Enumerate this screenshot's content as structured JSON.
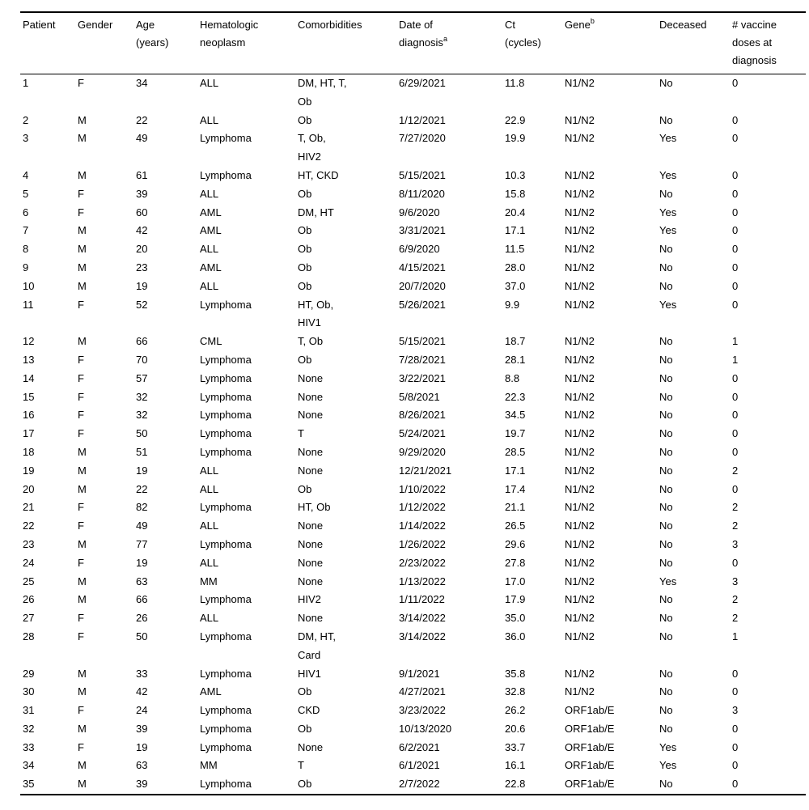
{
  "table": {
    "columns": [
      {
        "id": "patient",
        "label_lines": [
          "Patient"
        ],
        "sup": ""
      },
      {
        "id": "gender",
        "label_lines": [
          "Gender"
        ],
        "sup": ""
      },
      {
        "id": "age",
        "label_lines": [
          "Age",
          "(years)"
        ],
        "sup": ""
      },
      {
        "id": "hematologic-neoplasm",
        "label_lines": [
          "Hematologic",
          "neoplasm"
        ],
        "sup": ""
      },
      {
        "id": "comorbidities",
        "label_lines": [
          "Comorbidities"
        ],
        "sup": ""
      },
      {
        "id": "date-of-diagnosis",
        "label_lines": [
          "Date of",
          "diagnosis"
        ],
        "sup": "a"
      },
      {
        "id": "ct-cycles",
        "label_lines": [
          "Ct",
          "(cycles)"
        ],
        "sup": ""
      },
      {
        "id": "gene",
        "label_lines": [
          "Gene"
        ],
        "sup": "b"
      },
      {
        "id": "deceased",
        "label_lines": [
          "Deceased"
        ],
        "sup": ""
      },
      {
        "id": "vaccine-doses",
        "label_lines": [
          "# vaccine",
          "doses at",
          "diagnosis"
        ],
        "sup": ""
      }
    ],
    "rows": [
      [
        "1",
        "F",
        "34",
        "ALL",
        "DM, HT, T, Ob",
        "6/29/2021",
        "11.8",
        "N1/N2",
        "No",
        "0"
      ],
      [
        "2",
        "M",
        "22",
        "ALL",
        "Ob",
        "1/12/2021",
        "22.9",
        "N1/N2",
        "No",
        "0"
      ],
      [
        "3",
        "M",
        "49",
        "Lymphoma",
        "T, Ob, HIV2",
        "7/27/2020",
        "19.9",
        "N1/N2",
        "Yes",
        "0"
      ],
      [
        "4",
        "M",
        "61",
        "Lymphoma",
        "HT, CKD",
        "5/15/2021",
        "10.3",
        "N1/N2",
        "Yes",
        "0"
      ],
      [
        "5",
        "F",
        "39",
        "ALL",
        "Ob",
        "8/11/2020",
        "15.8",
        "N1/N2",
        "No",
        "0"
      ],
      [
        "6",
        "F",
        "60",
        "AML",
        "DM, HT",
        "9/6/2020",
        "20.4",
        "N1/N2",
        "Yes",
        "0"
      ],
      [
        "7",
        "M",
        "42",
        "AML",
        "Ob",
        "3/31/2021",
        "17.1",
        "N1/N2",
        "Yes",
        "0"
      ],
      [
        "8",
        "M",
        "20",
        "ALL",
        "Ob",
        "6/9/2020",
        "11.5",
        "N1/N2",
        "No",
        "0"
      ],
      [
        "9",
        "M",
        "23",
        "AML",
        "Ob",
        "4/15/2021",
        "28.0",
        "N1/N2",
        "No",
        "0"
      ],
      [
        "10",
        "M",
        "19",
        "ALL",
        "Ob",
        "20/7/2020",
        "37.0",
        "N1/N2",
        "No",
        "0"
      ],
      [
        "11",
        "F",
        "52",
        "Lymphoma",
        "HT, Ob, HIV1",
        "5/26/2021",
        "9.9",
        "N1/N2",
        "Yes",
        "0"
      ],
      [
        "12",
        "M",
        "66",
        "CML",
        "T, Ob",
        "5/15/2021",
        "18.7",
        "N1/N2",
        "No",
        "1"
      ],
      [
        "13",
        "F",
        "70",
        "Lymphoma",
        "Ob",
        "7/28/2021",
        "28.1",
        "N1/N2",
        "No",
        "1"
      ],
      [
        "14",
        "F",
        "57",
        "Lymphoma",
        "None",
        "3/22/2021",
        "8.8",
        "N1/N2",
        "No",
        "0"
      ],
      [
        "15",
        "F",
        "32",
        "Lymphoma",
        "None",
        "5/8/2021",
        "22.3",
        "N1/N2",
        "No",
        "0"
      ],
      [
        "16",
        "F",
        "32",
        "Lymphoma",
        "None",
        "8/26/2021",
        "34.5",
        "N1/N2",
        "No",
        "0"
      ],
      [
        "17",
        "F",
        "50",
        "Lymphoma",
        "T",
        "5/24/2021",
        "19.7",
        "N1/N2",
        "No",
        "0"
      ],
      [
        "18",
        "M",
        "51",
        "Lymphoma",
        "None",
        "9/29/2020",
        "28.5",
        "N1/N2",
        "No",
        "0"
      ],
      [
        "19",
        "M",
        "19",
        "ALL",
        "None",
        "12/21/2021",
        "17.1",
        "N1/N2",
        "No",
        "2"
      ],
      [
        "20",
        "M",
        "22",
        "ALL",
        "Ob",
        "1/10/2022",
        "17.4",
        "N1/N2",
        "No",
        "0"
      ],
      [
        "21",
        "F",
        "82",
        "Lymphoma",
        "HT, Ob",
        "1/12/2022",
        "21.1",
        "N1/N2",
        "No",
        "2"
      ],
      [
        "22",
        "F",
        "49",
        "ALL",
        "None",
        "1/14/2022",
        "26.5",
        "N1/N2",
        "No",
        "2"
      ],
      [
        "23",
        "M",
        "77",
        "Lymphoma",
        "None",
        "1/26/2022",
        "29.6",
        "N1/N2",
        "No",
        "3"
      ],
      [
        "24",
        "F",
        "19",
        "ALL",
        "None",
        "2/23/2022",
        "27.8",
        "N1/N2",
        "No",
        "0"
      ],
      [
        "25",
        "M",
        "63",
        "MM",
        "None",
        "1/13/2022",
        "17.0",
        "N1/N2",
        "Yes",
        "3"
      ],
      [
        "26",
        "M",
        "66",
        "Lymphoma",
        "HIV2",
        "1/11/2022",
        "17.9",
        "N1/N2",
        "No",
        "2"
      ],
      [
        "27",
        "F",
        "26",
        "ALL",
        "None",
        "3/14/2022",
        "35.0",
        "N1/N2",
        "No",
        "2"
      ],
      [
        "28",
        "F",
        "50",
        "Lymphoma",
        "DM, HT, Card",
        "3/14/2022",
        "36.0",
        "N1/N2",
        "No",
        "1"
      ],
      [
        "29",
        "M",
        "33",
        "Lymphoma",
        "HIV1",
        "9/1/2021",
        "35.8",
        "N1/N2",
        "No",
        "0"
      ],
      [
        "30",
        "M",
        "42",
        "AML",
        "Ob",
        "4/27/2021",
        "32.8",
        "N1/N2",
        "No",
        "0"
      ],
      [
        "31",
        "F",
        "24",
        "Lymphoma",
        "CKD",
        "3/23/2022",
        "26.2",
        "ORF1ab/E",
        "No",
        "3"
      ],
      [
        "32",
        "M",
        "39",
        "Lymphoma",
        "Ob",
        "10/13/2020",
        "20.6",
        "ORF1ab/E",
        "No",
        "0"
      ],
      [
        "33",
        "F",
        "19",
        "Lymphoma",
        "None",
        "6/2/2021",
        "33.7",
        "ORF1ab/E",
        "Yes",
        "0"
      ],
      [
        "34",
        "M",
        "63",
        "MM",
        "T",
        "6/1/2021",
        "16.1",
        "ORF1ab/E",
        "Yes",
        "0"
      ],
      [
        "35",
        "M",
        "39",
        "Lymphoma",
        "Ob",
        "2/7/2022",
        "22.8",
        "ORF1ab/E",
        "No",
        "0"
      ]
    ],
    "colors": {
      "text": "#000000",
      "rule": "#000000",
      "background": "#ffffff"
    }
  }
}
